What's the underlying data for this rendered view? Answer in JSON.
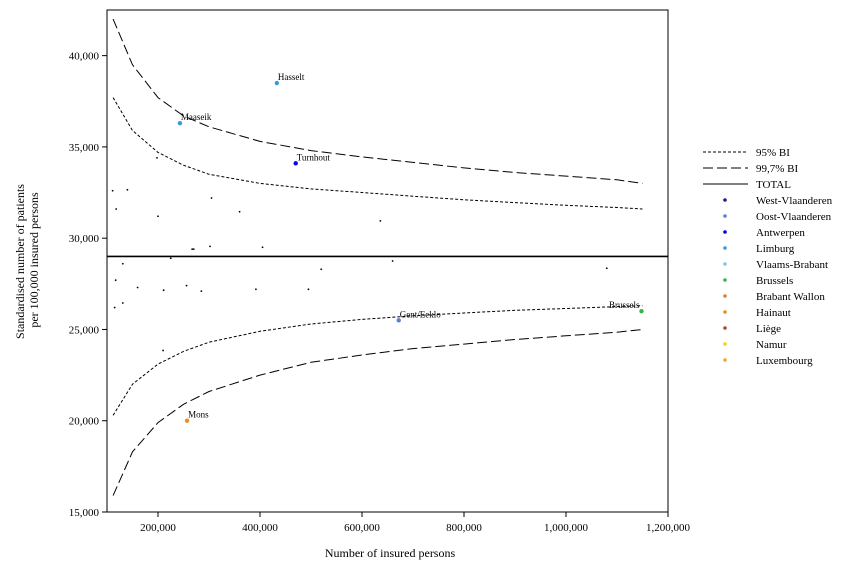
{
  "chart_data": {
    "type": "scatter",
    "title": "",
    "xlabel": "Number of insured persons",
    "ylabel_lines": [
      "Standardised number of patients",
      "per 100,000 insured persons"
    ],
    "xlim": [
      100000,
      1200000
    ],
    "ylim": [
      15000,
      42500
    ],
    "x_ticks": [
      200000,
      400000,
      600000,
      800000,
      1000000,
      1200000
    ],
    "x_tick_labels": [
      "200,000",
      "400,000",
      "600,000",
      "800,000",
      "1,000,000",
      "1,200,000"
    ],
    "y_ticks": [
      15000,
      20000,
      25000,
      30000,
      35000,
      40000
    ],
    "y_tick_labels": [
      "15,000",
      "20,000",
      "25,000",
      "30,000",
      "35,000",
      "40,000"
    ],
    "grid": false,
    "legend_position": "right",
    "total": 29000,
    "lines": [
      {
        "name": "95% BI",
        "dash": "dotted",
        "upper": [
          [
            112000,
            37700
          ],
          [
            150000,
            35900
          ],
          [
            200000,
            34700
          ],
          [
            250000,
            34000
          ],
          [
            300000,
            33500
          ],
          [
            400000,
            33000
          ],
          [
            500000,
            32700
          ],
          [
            600000,
            32500
          ],
          [
            700000,
            32300
          ],
          [
            800000,
            32100
          ],
          [
            900000,
            31950
          ],
          [
            1000000,
            31800
          ],
          [
            1100000,
            31680
          ],
          [
            1150000,
            31600
          ]
        ],
        "lower": [
          [
            112000,
            20300
          ],
          [
            150000,
            22000
          ],
          [
            200000,
            23100
          ],
          [
            250000,
            23800
          ],
          [
            300000,
            24300
          ],
          [
            400000,
            24900
          ],
          [
            500000,
            25300
          ],
          [
            600000,
            25550
          ],
          [
            700000,
            25750
          ],
          [
            800000,
            25900
          ],
          [
            900000,
            26050
          ],
          [
            1000000,
            26150
          ],
          [
            1100000,
            26250
          ],
          [
            1150000,
            26300
          ]
        ]
      },
      {
        "name": "99,7% BI",
        "dash": "dashed",
        "upper": [
          [
            112000,
            42000
          ],
          [
            150000,
            39500
          ],
          [
            200000,
            37700
          ],
          [
            250000,
            36700
          ],
          [
            300000,
            36100
          ],
          [
            400000,
            35300
          ],
          [
            500000,
            34800
          ],
          [
            600000,
            34450
          ],
          [
            700000,
            34150
          ],
          [
            800000,
            33850
          ],
          [
            900000,
            33600
          ],
          [
            1000000,
            33400
          ],
          [
            1100000,
            33200
          ],
          [
            1150000,
            33000
          ]
        ],
        "lower": [
          [
            112000,
            15900
          ],
          [
            150000,
            18300
          ],
          [
            200000,
            19900
          ],
          [
            250000,
            20900
          ],
          [
            300000,
            21600
          ],
          [
            400000,
            22500
          ],
          [
            500000,
            23200
          ],
          [
            600000,
            23600
          ],
          [
            700000,
            23950
          ],
          [
            800000,
            24200
          ],
          [
            900000,
            24450
          ],
          [
            1000000,
            24650
          ],
          [
            1100000,
            24850
          ],
          [
            1150000,
            25000
          ]
        ]
      },
      {
        "name": "TOTAL",
        "dash": "solid"
      }
    ],
    "legend": [
      {
        "name": "95% BI",
        "kind": "dotted"
      },
      {
        "name": "99,7% BI",
        "kind": "dashed"
      },
      {
        "name": "TOTAL",
        "kind": "solid"
      },
      {
        "name": "West-Vlaanderen",
        "kind": "dot",
        "color": "#1a237e"
      },
      {
        "name": "Oost-Vlaanderen",
        "kind": "dot",
        "color": "#5b7fd6"
      },
      {
        "name": "Antwerpen",
        "kind": "dot",
        "color": "#0000ee"
      },
      {
        "name": "Limburg",
        "kind": "dot",
        "color": "#3a9ad9"
      },
      {
        "name": "Vlaams-Brabant",
        "kind": "dot",
        "color": "#7fc6e8"
      },
      {
        "name": "Brussels",
        "kind": "dot",
        "color": "#33b54a"
      },
      {
        "name": "Brabant Wallon",
        "kind": "dot",
        "color": "#e07a3c"
      },
      {
        "name": "Hainaut",
        "kind": "dot",
        "color": "#f08c1c"
      },
      {
        "name": "Liège",
        "kind": "dot",
        "color": "#a0522d"
      },
      {
        "name": "Namur",
        "kind": "dot",
        "color": "#f5d800"
      },
      {
        "name": "Luxembourg",
        "kind": "dot",
        "color": "#f5a623"
      }
    ],
    "labeled_points": [
      {
        "label": "Hasselt",
        "x": 433000,
        "y": 38500,
        "color": "#3a9ad9"
      },
      {
        "label": "Maaseik",
        "x": 243000,
        "y": 36300,
        "color": "#3a9ad9"
      },
      {
        "label": "Turnhout",
        "x": 470000,
        "y": 34100,
        "color": "#0000ee"
      },
      {
        "label": "Gent/Eeklo",
        "x": 672000,
        "y": 25500,
        "color": "#5b7fd6"
      },
      {
        "label": "Brussels",
        "x": 1148000,
        "y": 26000,
        "color": "#33b54a"
      },
      {
        "label": "Mons",
        "x": 257000,
        "y": 20000,
        "color": "#f08c1c"
      }
    ],
    "points": [
      [
        111000,
        32600
      ],
      [
        118000,
        31600
      ],
      [
        140000,
        32650
      ],
      [
        198000,
        34400
      ],
      [
        200000,
        31200
      ],
      [
        305000,
        32200
      ],
      [
        360000,
        31450
      ],
      [
        636000,
        30950
      ],
      [
        267000,
        29400
      ],
      [
        270000,
        29400
      ],
      [
        302000,
        29550
      ],
      [
        405000,
        29500
      ],
      [
        225000,
        28900
      ],
      [
        131000,
        28600
      ],
      [
        520000,
        28300
      ],
      [
        1080000,
        28350
      ],
      [
        660000,
        28750
      ],
      [
        117000,
        27700
      ],
      [
        160000,
        27300
      ],
      [
        211000,
        27150
      ],
      [
        256000,
        27400
      ],
      [
        285000,
        27100
      ],
      [
        392000,
        27200
      ],
      [
        495000,
        27200
      ],
      [
        115000,
        26200
      ],
      [
        131000,
        26450
      ],
      [
        210000,
        23850
      ]
    ]
  }
}
